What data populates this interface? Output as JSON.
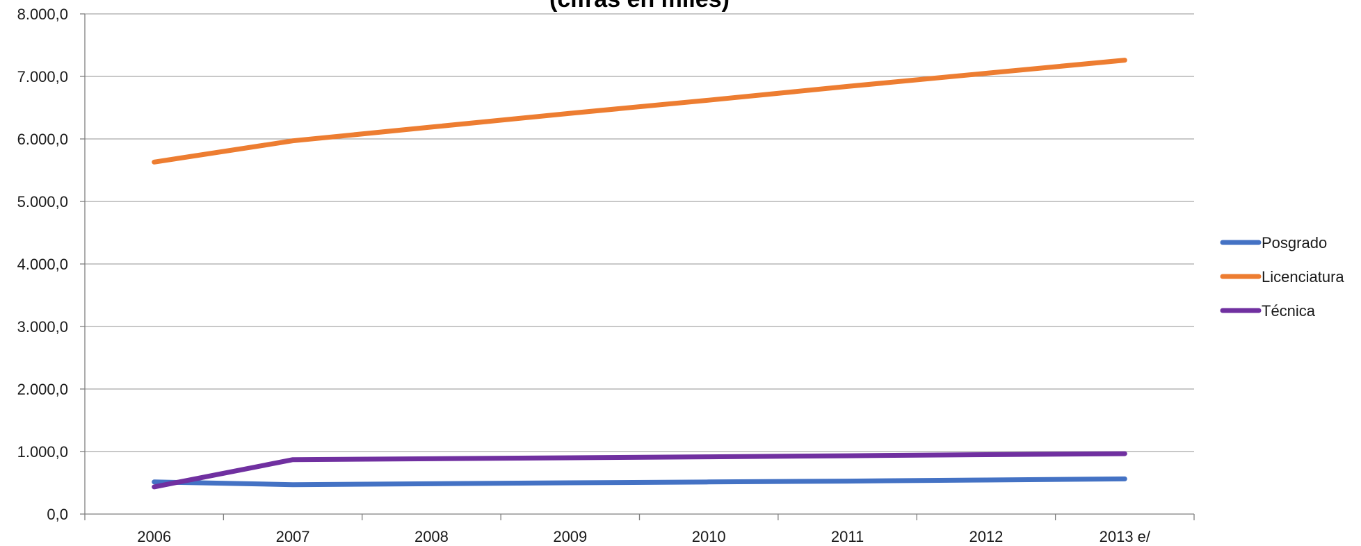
{
  "chart_data": {
    "type": "line",
    "title": "(cifras en miles)",
    "xlabel": "",
    "ylabel": "",
    "categories": [
      "2006",
      "2007",
      "2008",
      "2009",
      "2010",
      "2011",
      "2012",
      "2013 e/"
    ],
    "ylim": [
      0,
      8000
    ],
    "yticks": [
      "0,0",
      "1.000,0",
      "2.000,0",
      "3.000,0",
      "4.000,0",
      "5.000,0",
      "6.000,0",
      "7.000,0",
      "8.000,0"
    ],
    "grid": true,
    "legend_position": "right",
    "series": [
      {
        "name": "Posgrado",
        "color": "#4472c4",
        "values": [
          513,
          470,
          485,
          500,
          513,
          527,
          545,
          562
        ]
      },
      {
        "name": "Licenciatura",
        "color": "#ed7d31",
        "values": [
          5630,
          5970,
          6190,
          6410,
          6620,
          6840,
          7050,
          7260
        ]
      },
      {
        "name": "Técnica",
        "color": "#7030a0",
        "values": [
          435,
          870,
          885,
          900,
          915,
          932,
          950,
          965
        ]
      }
    ]
  }
}
